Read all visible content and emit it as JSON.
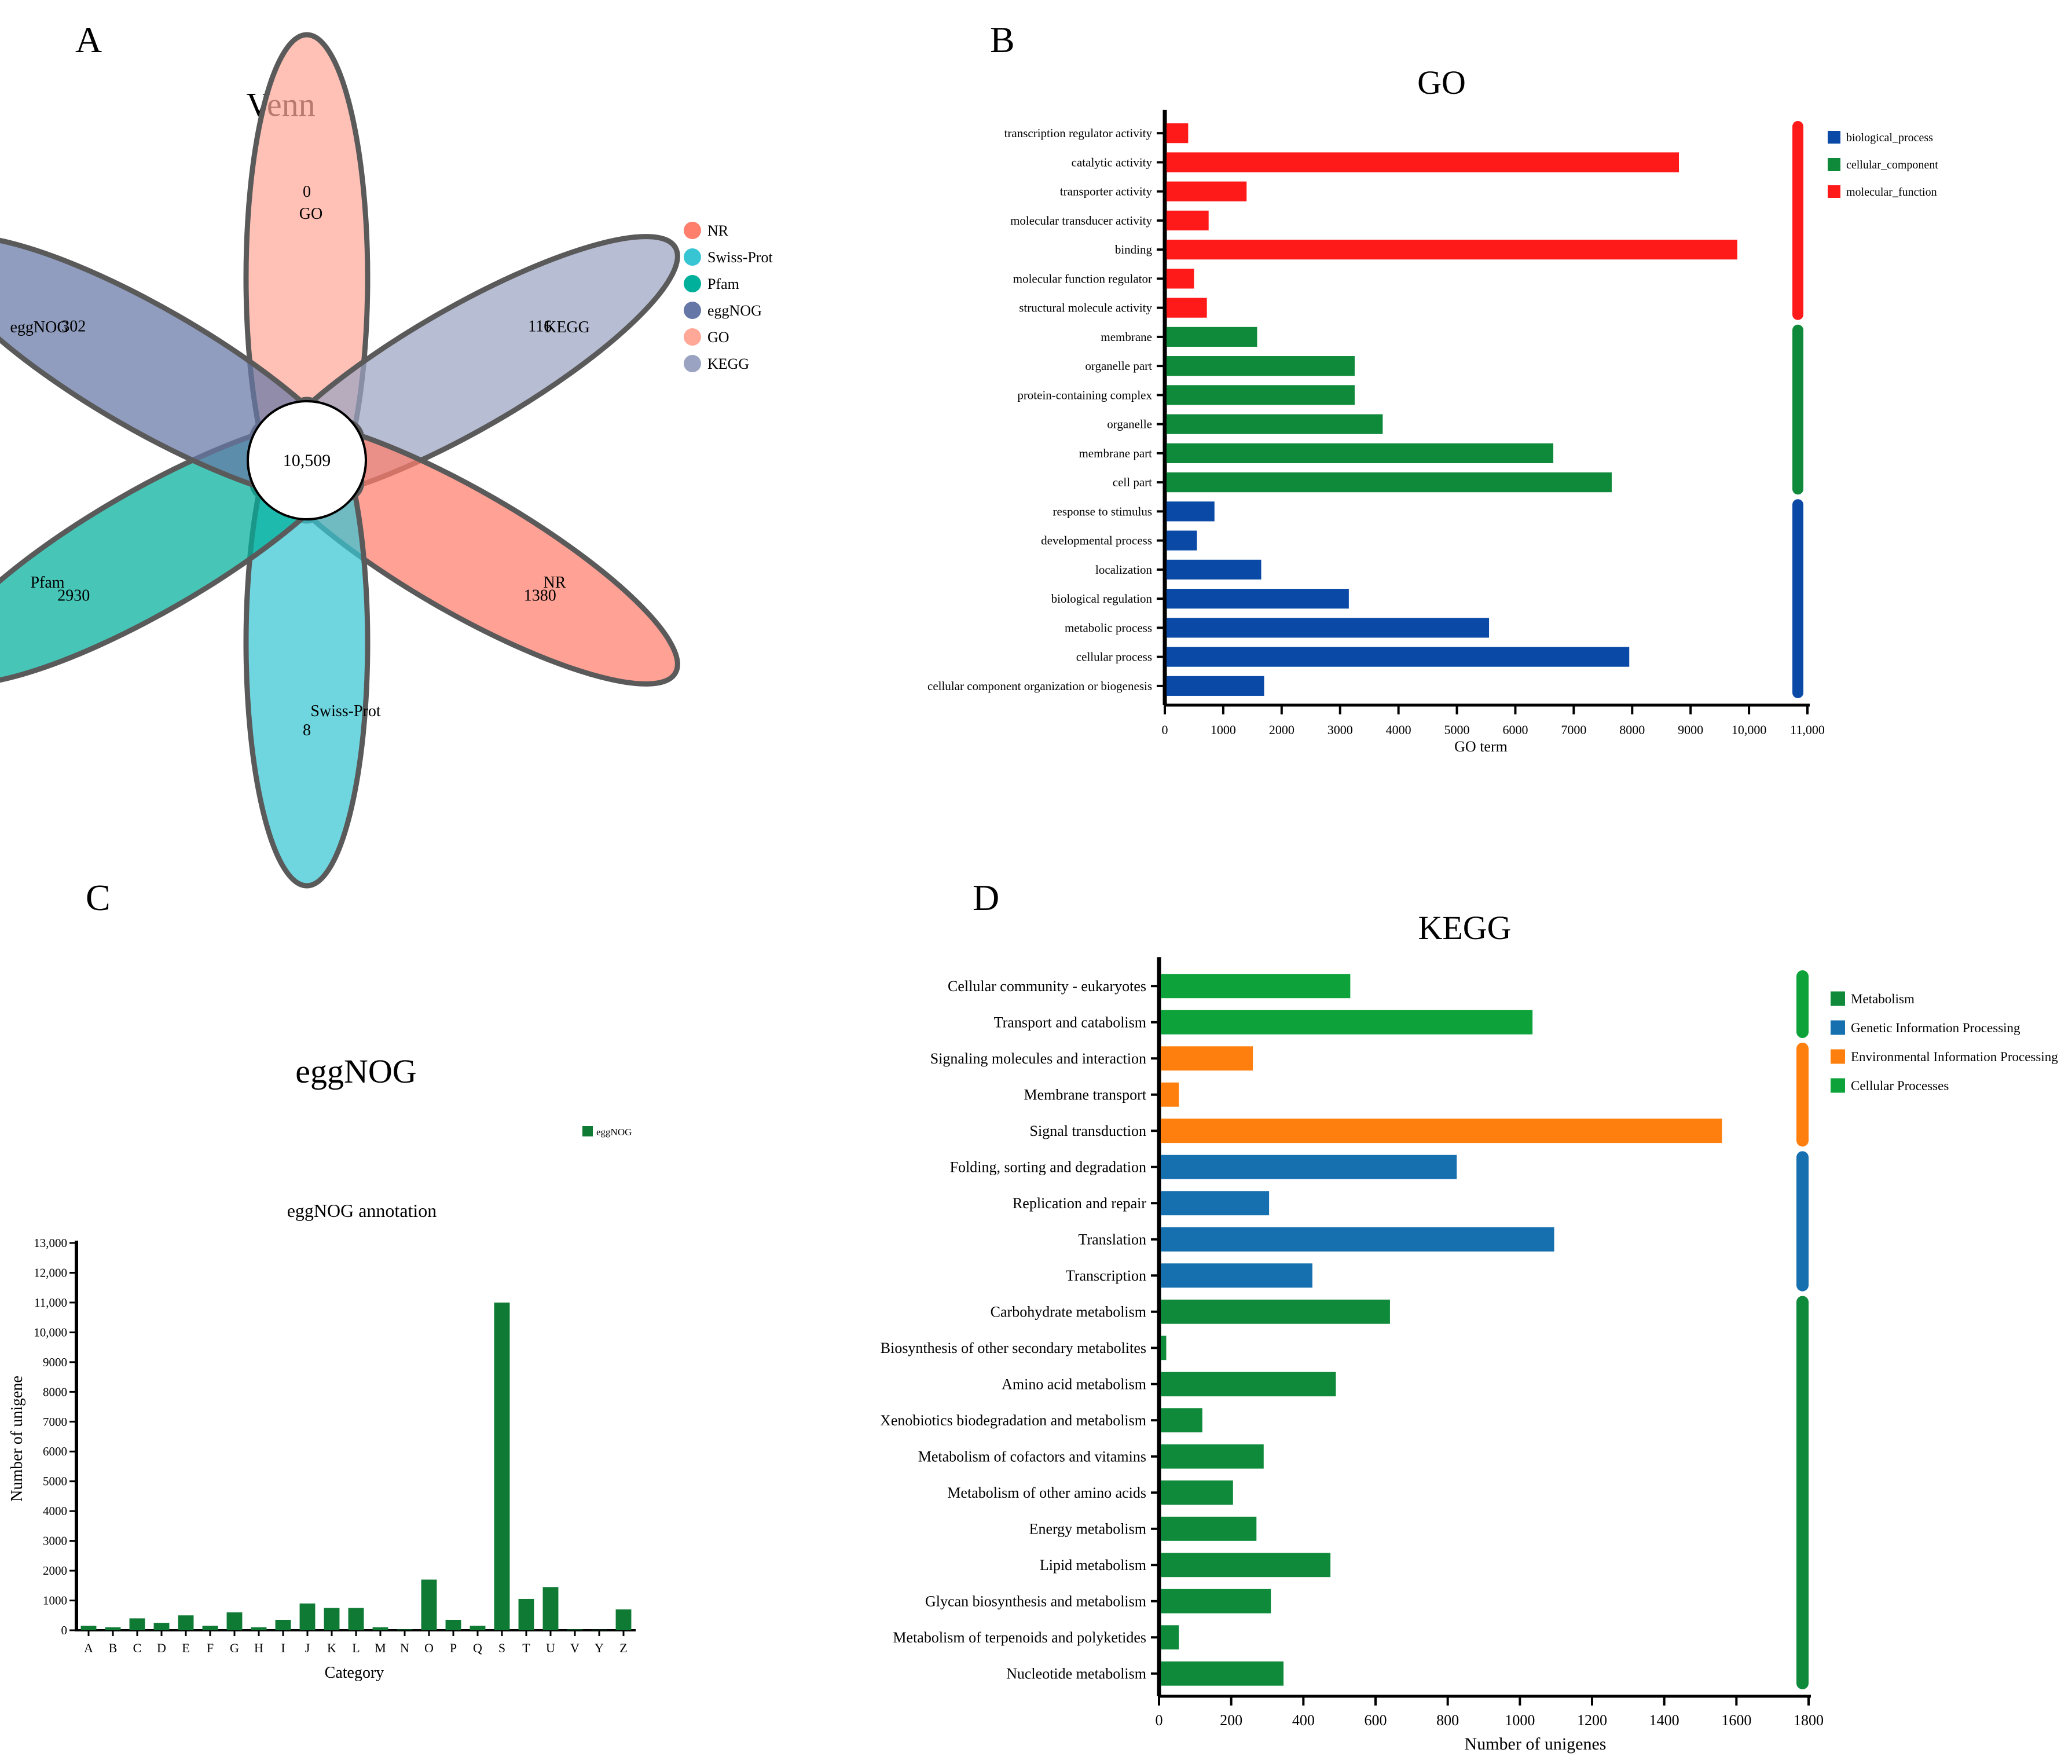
{
  "panels": {
    "a": {
      "label": "A",
      "title": "Venn"
    },
    "b": {
      "label": "B"
    },
    "c": {
      "label": "C",
      "title": "eggNOG"
    },
    "d": {
      "label": "D"
    }
  },
  "chart_data": [
    {
      "type": "venn",
      "title": "Venn",
      "sets": [
        {
          "name": "GO",
          "unique": 0,
          "color": "#FFA898"
        },
        {
          "name": "KEGG",
          "unique": 116,
          "color": "#9BA3C2"
        },
        {
          "name": "NR",
          "unique": 1380,
          "color": "#FF7E6C"
        },
        {
          "name": "Swiss-Prot",
          "unique": 8,
          "color": "#38C5D3"
        },
        {
          "name": "Pfam",
          "unique": 2930,
          "color": "#00B09B"
        },
        {
          "name": "eggNOG",
          "unique": 302,
          "color": "#6577A6"
        }
      ],
      "intersection": "10,509",
      "legend": [
        {
          "name": "NR",
          "color": "#FF7E6C"
        },
        {
          "name": "Swiss-Prot",
          "color": "#38C5D3"
        },
        {
          "name": "Pfam",
          "color": "#00B09B"
        },
        {
          "name": "eggNOG",
          "color": "#6577A6"
        },
        {
          "name": "GO",
          "color": "#FFA898"
        },
        {
          "name": "KEGG",
          "color": "#9BA3C2"
        }
      ]
    },
    {
      "type": "bar",
      "orientation": "horizontal",
      "title": "GO",
      "xlabel": "GO term",
      "xlim": [
        0,
        11000
      ],
      "xticks": [
        "0",
        "1000",
        "2000",
        "3000",
        "4000",
        "5000",
        "6000",
        "7000",
        "8000",
        "9000",
        "10,000",
        "11,000"
      ],
      "groups": [
        {
          "name": "molecular_function",
          "color": "#FF1A1A"
        },
        {
          "name": "cellular_component",
          "color": "#0E8A3A"
        },
        {
          "name": "biological_process",
          "color": "#0A4AA6"
        }
      ],
      "legend": [
        {
          "name": "biological_process",
          "color": "#0A4AA6"
        },
        {
          "name": "cellular_component",
          "color": "#0E8A3A"
        },
        {
          "name": "molecular_function",
          "color": "#FF1A1A"
        }
      ],
      "bars": [
        {
          "label": "transcription regulator activity",
          "value": 400,
          "group": 0
        },
        {
          "label": "catalytic activity",
          "value": 8800,
          "group": 0
        },
        {
          "label": "transporter activity",
          "value": 1400,
          "group": 0
        },
        {
          "label": "molecular transducer activity",
          "value": 750,
          "group": 0
        },
        {
          "label": "binding",
          "value": 9800,
          "group": 0
        },
        {
          "label": "molecular function regulator",
          "value": 500,
          "group": 0
        },
        {
          "label": "structural molecule activity",
          "value": 720,
          "group": 0
        },
        {
          "label": "membrane",
          "value": 1580,
          "group": 1
        },
        {
          "label": "organelle part",
          "value": 3250,
          "group": 1
        },
        {
          "label": "protein-containing complex",
          "value": 3250,
          "group": 1
        },
        {
          "label": "organelle",
          "value": 3730,
          "group": 1
        },
        {
          "label": "membrane part",
          "value": 6650,
          "group": 1
        },
        {
          "label": "cell part",
          "value": 7650,
          "group": 1
        },
        {
          "label": "response to stimulus",
          "value": 850,
          "group": 2
        },
        {
          "label": "developmental process",
          "value": 550,
          "group": 2
        },
        {
          "label": "localization",
          "value": 1650,
          "group": 2
        },
        {
          "label": "biological regulation",
          "value": 3150,
          "group": 2
        },
        {
          "label": "metabolic process",
          "value": 5550,
          "group": 2
        },
        {
          "label": "cellular process",
          "value": 7950,
          "group": 2
        },
        {
          "label": "cellular component organization or biogenesis",
          "value": 1700,
          "group": 2
        }
      ]
    },
    {
      "type": "bar",
      "title": "eggNOG annotation",
      "xlabel": "Category",
      "ylabel": "Number of unigene",
      "ylim": [
        0,
        13000
      ],
      "yticks": [
        "0",
        "1000",
        "2000",
        "3000",
        "4000",
        "5000",
        "6000",
        "7000",
        "8000",
        "9000",
        "10,000",
        "11,000",
        "12,000",
        "13,000"
      ],
      "legend": "eggNOG",
      "color": "#0E7A33",
      "categories": [
        "A",
        "B",
        "C",
        "D",
        "E",
        "F",
        "G",
        "H",
        "I",
        "J",
        "K",
        "L",
        "M",
        "N",
        "O",
        "P",
        "Q",
        "S",
        "T",
        "U",
        "V",
        "Y",
        "Z"
      ],
      "values": [
        150,
        100,
        400,
        250,
        500,
        150,
        600,
        100,
        350,
        900,
        750,
        750,
        100,
        30,
        1700,
        350,
        150,
        11000,
        1050,
        1450,
        30,
        20,
        700
      ]
    },
    {
      "type": "bar",
      "orientation": "horizontal",
      "title": "KEGG",
      "xlabel": "Number of unigenes",
      "xlim": [
        0,
        1800
      ],
      "xticks": [
        "0",
        "200",
        "400",
        "600",
        "800",
        "1000",
        "1200",
        "1400",
        "1600",
        "1800"
      ],
      "groups": [
        {
          "name": "Cellular Processes",
          "color": "#0DA33A"
        },
        {
          "name": "Environmental Information Processing",
          "color": "#FF7F0E"
        },
        {
          "name": "Genetic Information Processing",
          "color": "#1670B0"
        },
        {
          "name": "Metabolism",
          "color": "#0E8A3A"
        }
      ],
      "legend": [
        {
          "name": "Metabolism",
          "color": "#0E8A3A"
        },
        {
          "name": "Genetic Information Processing",
          "color": "#1670B0"
        },
        {
          "name": "Environmental Information Processing",
          "color": "#FF7F0E"
        },
        {
          "name": "Cellular Processes",
          "color": "#0DA33A"
        }
      ],
      "bars": [
        {
          "label": "Cellular community - eukaryotes",
          "value": 530,
          "group": 0
        },
        {
          "label": "Transport and catabolism",
          "value": 1035,
          "group": 0
        },
        {
          "label": "Signaling molecules and interaction",
          "value": 260,
          "group": 1
        },
        {
          "label": "Membrane transport",
          "value": 55,
          "group": 1
        },
        {
          "label": "Signal transduction",
          "value": 1560,
          "group": 1
        },
        {
          "label": "Folding, sorting and degradation",
          "value": 825,
          "group": 2
        },
        {
          "label": "Replication and repair",
          "value": 305,
          "group": 2
        },
        {
          "label": "Translation",
          "value": 1095,
          "group": 2
        },
        {
          "label": "Transcription",
          "value": 425,
          "group": 2
        },
        {
          "label": "Carbohydrate metabolism",
          "value": 640,
          "group": 3
        },
        {
          "label": "Biosynthesis of other secondary metabolites",
          "value": 20,
          "group": 3
        },
        {
          "label": "Amino acid metabolism",
          "value": 490,
          "group": 3
        },
        {
          "label": "Xenobiotics biodegradation and metabolism",
          "value": 120,
          "group": 3
        },
        {
          "label": "Metabolism of cofactors and vitamins",
          "value": 290,
          "group": 3
        },
        {
          "label": "Metabolism of other amino acids",
          "value": 205,
          "group": 3
        },
        {
          "label": "Energy metabolism",
          "value": 270,
          "group": 3
        },
        {
          "label": "Lipid metabolism",
          "value": 475,
          "group": 3
        },
        {
          "label": "Glycan biosynthesis and metabolism",
          "value": 310,
          "group": 3
        },
        {
          "label": "Metabolism of terpenoids and polyketides",
          "value": 55,
          "group": 3
        },
        {
          "label": "Nucleotide metabolism",
          "value": 345,
          "group": 3
        }
      ]
    }
  ]
}
